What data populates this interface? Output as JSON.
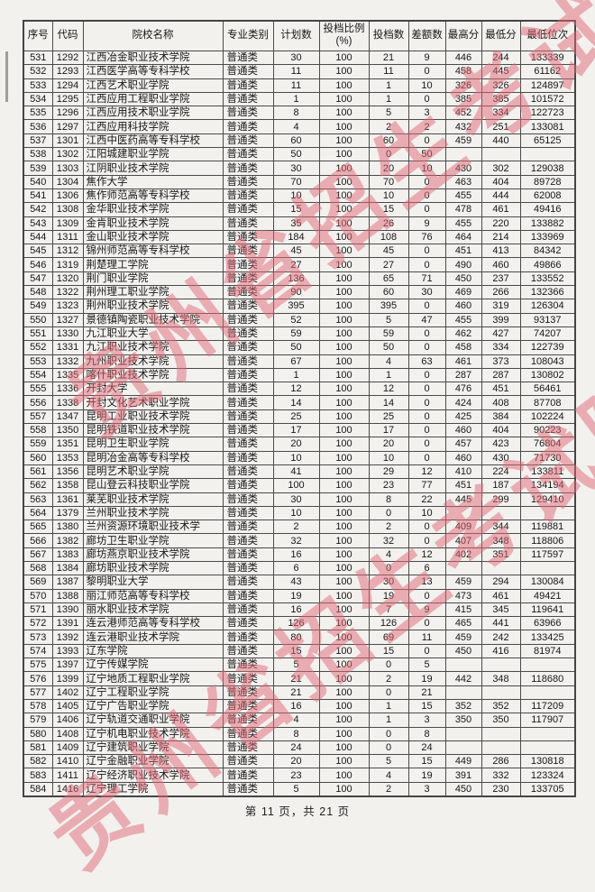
{
  "page": {
    "footer_text": "第 11 页，共 21 页",
    "watermark_text": "贵州省招生考试院",
    "colors": {
      "watermark": "#e06a77",
      "border": "#4a4a4a",
      "background": "#f2f1ee"
    }
  },
  "table": {
    "headers": [
      "序号",
      "代码",
      "院校名称",
      "专业类别",
      "计划数",
      "投档比例(%)",
      "投档数",
      "差额数",
      "最高分",
      "最低分",
      "最低位次"
    ],
    "rows": [
      [
        "531",
        "1292",
        "江西冶金职业技术学院",
        "普通类",
        "30",
        "100",
        "21",
        "9",
        "446",
        "244",
        "133339"
      ],
      [
        "532",
        "1293",
        "江西医学高等专科学校",
        "普通类",
        "11",
        "100",
        "11",
        "0",
        "458",
        "445",
        "61162"
      ],
      [
        "533",
        "1294",
        "江西艺术职业学院",
        "普通类",
        "11",
        "100",
        "1",
        "10",
        "326",
        "326",
        "124897"
      ],
      [
        "534",
        "1295",
        "江西应用工程职业学院",
        "普通类",
        "1",
        "100",
        "1",
        "0",
        "385",
        "385",
        "101572"
      ],
      [
        "535",
        "1296",
        "江西应用技术职业学院",
        "普通类",
        "8",
        "100",
        "5",
        "3",
        "452",
        "334",
        "122723"
      ],
      [
        "536",
        "1297",
        "江西应用科技学院",
        "普通类",
        "4",
        "100",
        "2",
        "2",
        "432",
        "251",
        "133081"
      ],
      [
        "537",
        "1301",
        "江西中医药高等专科学校",
        "普通类",
        "60",
        "100",
        "60",
        "0",
        "459",
        "440",
        "65125"
      ],
      [
        "538",
        "1302",
        "江阳城建职业学院",
        "普通类",
        "50",
        "100",
        "0",
        "50",
        "",
        "",
        ""
      ],
      [
        "539",
        "1303",
        "江阴职业技术学院",
        "普通类",
        "30",
        "100",
        "20",
        "10",
        "430",
        "302",
        "129038"
      ],
      [
        "540",
        "1304",
        "焦作大学",
        "普通类",
        "70",
        "100",
        "70",
        "0",
        "463",
        "404",
        "89728"
      ],
      [
        "541",
        "1306",
        "焦作师范高等专科学校",
        "普通类",
        "10",
        "100",
        "10",
        "0",
        "455",
        "444",
        "62008"
      ],
      [
        "542",
        "1308",
        "金华职业技术学院",
        "普通类",
        "15",
        "100",
        "15",
        "0",
        "478",
        "461",
        "49416"
      ],
      [
        "543",
        "1309",
        "金肯职业技术学院",
        "普通类",
        "35",
        "100",
        "26",
        "9",
        "455",
        "220",
        "133882"
      ],
      [
        "544",
        "1311",
        "金山职业技术学院",
        "普通类",
        "184",
        "100",
        "108",
        "76",
        "464",
        "214",
        "133969"
      ],
      [
        "545",
        "1312",
        "锦州师范高等专科学校",
        "普通类",
        "45",
        "100",
        "45",
        "0",
        "451",
        "413",
        "84342"
      ],
      [
        "546",
        "1319",
        "荆楚理工学院",
        "普通类",
        "27",
        "100",
        "27",
        "0",
        "490",
        "460",
        "49866"
      ],
      [
        "547",
        "1320",
        "荆门职业学院",
        "普通类",
        "136",
        "100",
        "65",
        "71",
        "450",
        "237",
        "133552"
      ],
      [
        "548",
        "1322",
        "荆州理工职业学院",
        "普通类",
        "90",
        "100",
        "60",
        "30",
        "469",
        "266",
        "132366"
      ],
      [
        "549",
        "1323",
        "荆州职业技术学院",
        "普通类",
        "395",
        "100",
        "395",
        "0",
        "460",
        "319",
        "126304"
      ],
      [
        "550",
        "1327",
        "景德镇陶瓷职业技术学院",
        "普通类",
        "52",
        "100",
        "5",
        "47",
        "455",
        "399",
        "93137"
      ],
      [
        "551",
        "1330",
        "九江职业大学",
        "普通类",
        "59",
        "100",
        "59",
        "0",
        "462",
        "427",
        "74207"
      ],
      [
        "552",
        "1331",
        "九江职业技术学院",
        "普通类",
        "50",
        "100",
        "50",
        "0",
        "458",
        "334",
        "122739"
      ],
      [
        "553",
        "1332",
        "九州职业技术学院",
        "普通类",
        "67",
        "100",
        "4",
        "63",
        "461",
        "373",
        "108043"
      ],
      [
        "554",
        "1335",
        "喀什职业技术学院",
        "普通类",
        "1",
        "100",
        "1",
        "0",
        "287",
        "287",
        "130802"
      ],
      [
        "555",
        "1336",
        "开封大学",
        "普通类",
        "12",
        "100",
        "12",
        "0",
        "476",
        "451",
        "56461"
      ],
      [
        "556",
        "1338",
        "开封文化艺术职业学院",
        "普通类",
        "14",
        "100",
        "14",
        "0",
        "424",
        "408",
        "87708"
      ],
      [
        "557",
        "1347",
        "昆明工业职业技术学院",
        "普通类",
        "25",
        "100",
        "25",
        "0",
        "425",
        "384",
        "102224"
      ],
      [
        "558",
        "1350",
        "昆明铁道职业技术学院",
        "普通类",
        "17",
        "100",
        "17",
        "0",
        "460",
        "404",
        "90223"
      ],
      [
        "559",
        "1351",
        "昆明卫生职业学院",
        "普通类",
        "20",
        "100",
        "20",
        "0",
        "457",
        "423",
        "76804"
      ],
      [
        "560",
        "1353",
        "昆明冶金高等专科学校",
        "普通类",
        "10",
        "100",
        "10",
        "0",
        "460",
        "430",
        "71730"
      ],
      [
        "561",
        "1356",
        "昆明艺术职业学院",
        "普通类",
        "41",
        "100",
        "29",
        "12",
        "410",
        "224",
        "133811"
      ],
      [
        "562",
        "1358",
        "昆山登云科技职业学院",
        "普通类",
        "100",
        "100",
        "23",
        "77",
        "451",
        "187",
        "134194"
      ],
      [
        "563",
        "1361",
        "莱芜职业技术学院",
        "普通类",
        "30",
        "100",
        "8",
        "22",
        "445",
        "299",
        "129410"
      ],
      [
        "564",
        "1379",
        "兰州职业技术学院",
        "普通类",
        "10",
        "100",
        "0",
        "10",
        "",
        "",
        ""
      ],
      [
        "565",
        "1380",
        "兰州资源环境职业技术学",
        "普通类",
        "2",
        "100",
        "2",
        "0",
        "409",
        "344",
        "119881"
      ],
      [
        "566",
        "1382",
        "廊坊卫生职业学院",
        "普通类",
        "32",
        "100",
        "32",
        "0",
        "407",
        "348",
        "118806"
      ],
      [
        "567",
        "1383",
        "廊坊燕京职业技术学院",
        "普通类",
        "16",
        "100",
        "4",
        "12",
        "402",
        "351",
        "117597"
      ],
      [
        "568",
        "1384",
        "廊坊职业技术学院",
        "普通类",
        "6",
        "100",
        "0",
        "6",
        "",
        "",
        ""
      ],
      [
        "569",
        "1387",
        "黎明职业大学",
        "普通类",
        "43",
        "100",
        "30",
        "13",
        "459",
        "294",
        "130084"
      ],
      [
        "570",
        "1388",
        "丽江师范高等专科学校",
        "普通类",
        "19",
        "100",
        "19",
        "0",
        "473",
        "461",
        "49421"
      ],
      [
        "571",
        "1390",
        "丽水职业技术学院",
        "普通类",
        "16",
        "100",
        "7",
        "9",
        "415",
        "345",
        "119641"
      ],
      [
        "572",
        "1391",
        "连云港师范高等专科学校",
        "普通类",
        "126",
        "100",
        "126",
        "0",
        "465",
        "441",
        "63966"
      ],
      [
        "573",
        "1392",
        "连云港职业技术学院",
        "普通类",
        "80",
        "100",
        "69",
        "11",
        "459",
        "242",
        "133425"
      ],
      [
        "574",
        "1393",
        "辽东学院",
        "普通类",
        "15",
        "100",
        "15",
        "0",
        "450",
        "416",
        "81974"
      ],
      [
        "575",
        "1397",
        "辽宁传媒学院",
        "普通类",
        "5",
        "100",
        "0",
        "5",
        "",
        "",
        ""
      ],
      [
        "576",
        "1399",
        "辽宁地质工程职业学院",
        "普通类",
        "21",
        "100",
        "2",
        "19",
        "442",
        "348",
        "118680"
      ],
      [
        "577",
        "1402",
        "辽宁工程职业学院",
        "普通类",
        "21",
        "100",
        "0",
        "21",
        "",
        "",
        ""
      ],
      [
        "578",
        "1405",
        "辽宁广告职业学院",
        "普通类",
        "16",
        "100",
        "1",
        "15",
        "352",
        "352",
        "117209"
      ],
      [
        "579",
        "1406",
        "辽宁轨道交通职业学院",
        "普通类",
        "4",
        "100",
        "1",
        "3",
        "350",
        "350",
        "117907"
      ],
      [
        "580",
        "1408",
        "辽宁机电职业技术学院",
        "普通类",
        "8",
        "100",
        "0",
        "8",
        "",
        "",
        ""
      ],
      [
        "581",
        "1409",
        "辽宁建筑职业学院",
        "普通类",
        "24",
        "100",
        "0",
        "24",
        "",
        "",
        ""
      ],
      [
        "582",
        "1410",
        "辽宁金融职业学院",
        "普通类",
        "20",
        "100",
        "5",
        "15",
        "449",
        "286",
        "130818"
      ],
      [
        "583",
        "1411",
        "辽宁经济职业技术学院",
        "普通类",
        "23",
        "100",
        "4",
        "19",
        "391",
        "332",
        "123324"
      ],
      [
        "584",
        "1416",
        "辽宁理工学院",
        "普通类",
        "5",
        "100",
        "2",
        "3",
        "450",
        "230",
        "133705"
      ]
    ]
  }
}
